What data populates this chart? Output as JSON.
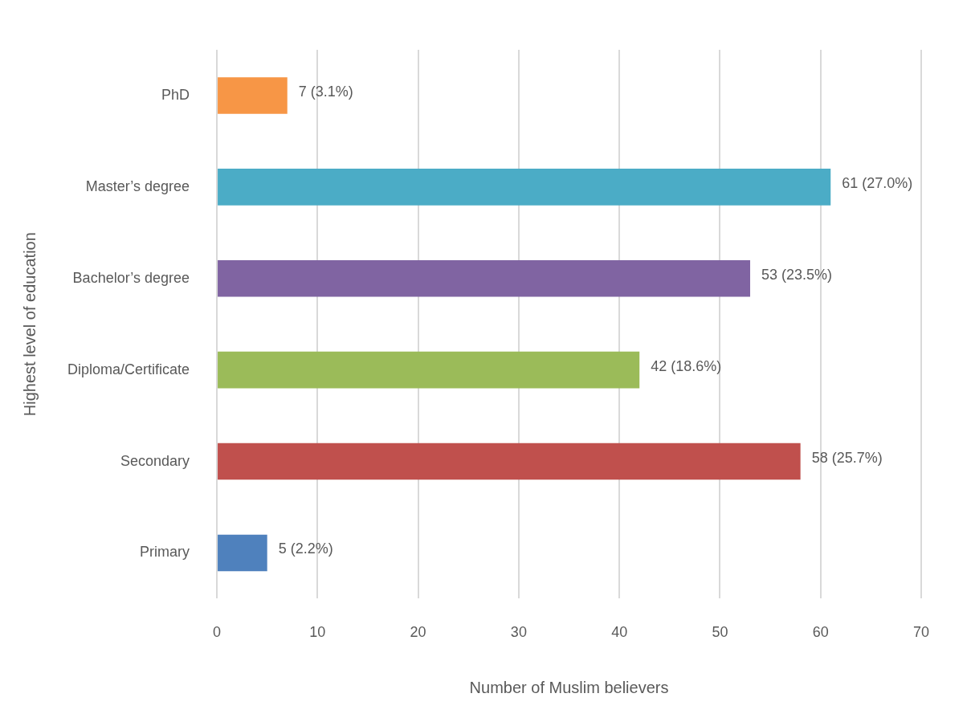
{
  "chart_data": {
    "type": "bar",
    "orientation": "horizontal",
    "categories": [
      "PhD",
      "Master’s degree",
      "Bachelor’s degree",
      "Diploma/Certificate",
      "Secondary",
      "Primary"
    ],
    "values": [
      7,
      61,
      53,
      42,
      58,
      5
    ],
    "colors": [
      "#f79646",
      "#4bacc6",
      "#8064a2",
      "#9bbb59",
      "#c0504d",
      "#4f81bd"
    ],
    "value_labels": [
      "7 (3.1%)",
      "61 (27.0%)",
      "53 (23.5%)",
      "42 (18.6%)",
      "58 (25.7%)",
      "5 (2.2%)"
    ],
    "xlabel": "Number of Muslim believers",
    "ylabel": "Highest level of education",
    "xlim": [
      0,
      70
    ],
    "xticks": [
      0,
      10,
      20,
      30,
      40,
      50,
      60,
      70
    ],
    "grid": "x"
  }
}
